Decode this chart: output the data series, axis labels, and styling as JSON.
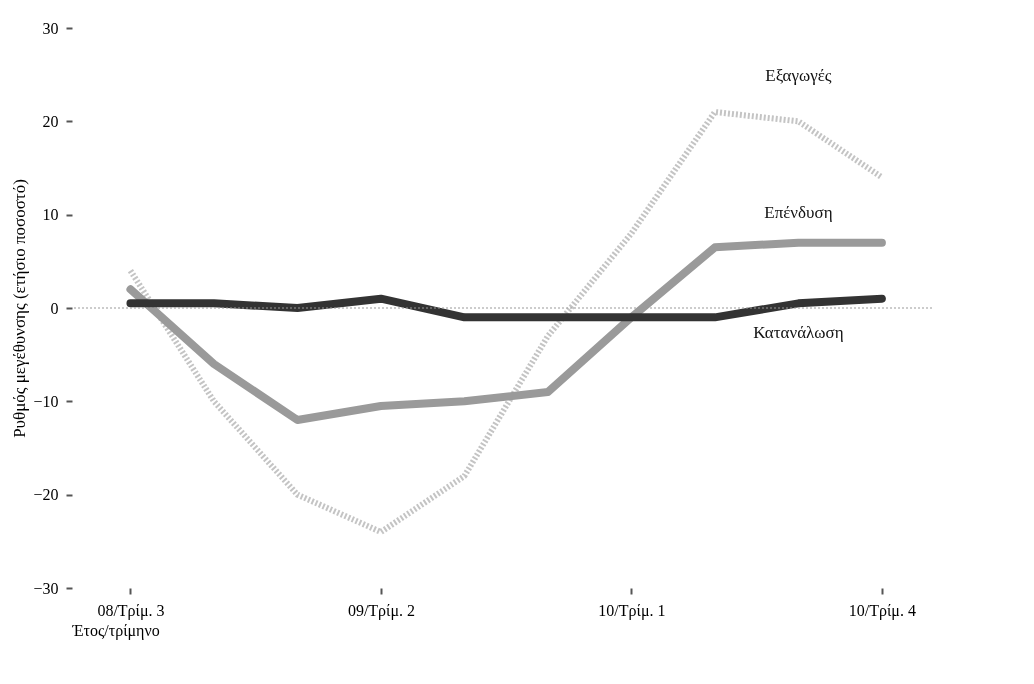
{
  "chart_data": {
    "type": "line",
    "xlabel": "Έτος/τρίμηνο",
    "ylabel": "Ρυθμός μεγέθυνσης (ετήσιο ποσοστό)",
    "categories": [
      "08/Τρίμ. 3",
      null,
      null,
      "09/Τρίμ. 2",
      null,
      null,
      "10/Τρίμ. 1",
      null,
      null,
      "10/Τρίμ. 4"
    ],
    "series": [
      {
        "name": "Εξαγωγές",
        "color": "#c4c4c4",
        "line_style": "dotted",
        "values": [
          4,
          -10,
          -20,
          -24,
          -18,
          -3,
          8,
          21,
          20,
          14
        ]
      },
      {
        "name": "Επένδυση",
        "color": "#9a9a9a",
        "values": [
          2,
          -6,
          -12,
          -10.5,
          -10,
          -9,
          -1,
          6.5,
          7,
          7
        ]
      },
      {
        "name": "Κατανάλωση",
        "color": "#333333",
        "values": [
          0.5,
          0.5,
          0,
          1,
          -1,
          -1,
          -1,
          -1,
          0.5,
          1
        ]
      }
    ],
    "ylim": [
      -30,
      30
    ],
    "yticks": [
      -30,
      -20,
      -10,
      0,
      10,
      20,
      30
    ],
    "grid": false,
    "ref_lines": [
      {
        "axis": "y",
        "value": 0,
        "color": "#999999",
        "line_style": "dotted"
      }
    ]
  }
}
